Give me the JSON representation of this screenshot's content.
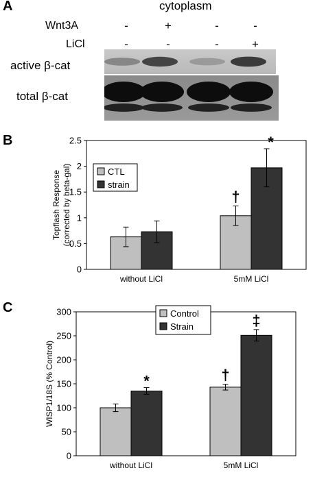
{
  "panel_a": {
    "letter": "A",
    "fraction": "cytoplasm",
    "conditions": [
      {
        "name": "Wnt3A",
        "signs": [
          "-",
          "+",
          "-",
          "-"
        ]
      },
      {
        "name": "LiCl",
        "signs": [
          "-",
          "-",
          "-",
          "+"
        ]
      }
    ],
    "blots": [
      {
        "label": "active β-cat",
        "band_intensity": [
          0.45,
          0.8,
          0.35,
          0.85
        ]
      },
      {
        "label": "total β-cat",
        "band_intensity": [
          0.95,
          0.95,
          0.95,
          0.95
        ]
      }
    ]
  },
  "chart_data": [
    {
      "panel": "B",
      "type": "bar",
      "categories": [
        "without LiCl",
        "5mM LiCl"
      ],
      "series": [
        {
          "name": "CTL",
          "color": "#bfbfbf",
          "values": [
            0.63,
            1.04
          ],
          "errors": [
            0.19,
            0.19
          ]
        },
        {
          "name": "strain",
          "color": "#333333",
          "values": [
            0.73,
            1.97
          ],
          "errors": [
            0.21,
            0.37
          ]
        }
      ],
      "annotations": [
        {
          "text": "†",
          "category": 1,
          "series": 0
        },
        {
          "text": "*",
          "category": 1,
          "series": 1
        }
      ],
      "ylabel": "Topflash Response\n(corrected by beta-gal)",
      "ylim": [
        0,
        2.5
      ],
      "yticks": [
        "0",
        "0.5",
        "1",
        "1.5",
        "2",
        "2.5"
      ],
      "legend_position": "top-left"
    },
    {
      "panel": "C",
      "type": "bar",
      "categories": [
        "without LiCl",
        "5mM LiCl"
      ],
      "series": [
        {
          "name": "Control",
          "color": "#bfbfbf",
          "values": [
            100,
            143
          ],
          "errors": [
            8,
            6
          ]
        },
        {
          "name": "Strain",
          "color": "#333333",
          "values": [
            135,
            251
          ],
          "errors": [
            7,
            12
          ]
        }
      ],
      "annotations": [
        {
          "text": "*",
          "category": 0,
          "series": 1
        },
        {
          "text": "†",
          "category": 1,
          "series": 0
        },
        {
          "text": "‡",
          "category": 1,
          "series": 1
        }
      ],
      "ylabel": "WISP1/18S (% Control)",
      "ylim": [
        0,
        300
      ],
      "yticks": [
        "0",
        "50",
        "100",
        "150",
        "200",
        "250",
        "300"
      ],
      "legend_position": "top-center"
    }
  ]
}
